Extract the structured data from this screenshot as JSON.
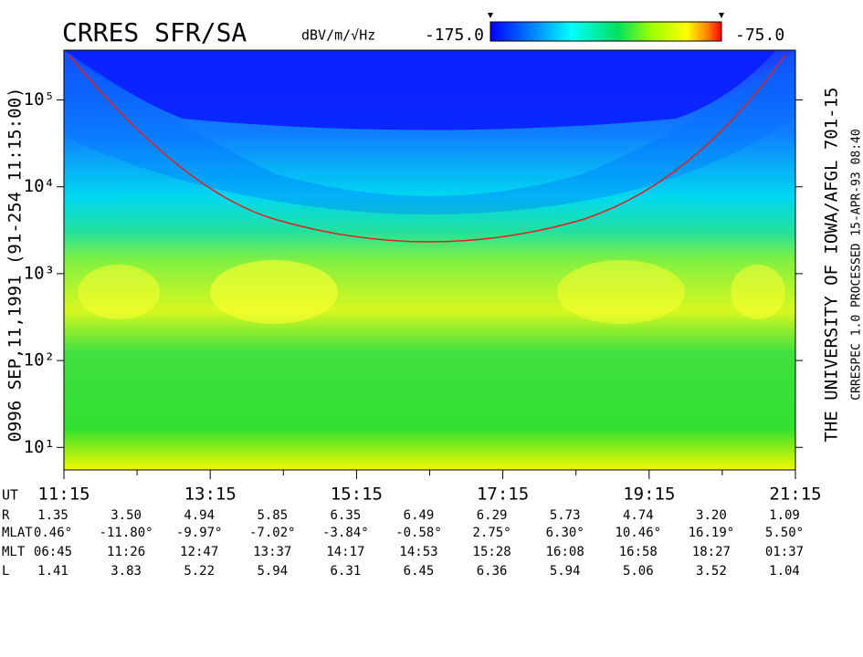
{
  "chart_data": {
    "type": "spectrogram",
    "title": "CRRES SFR/SA",
    "colorbar": {
      "label": "dBV/m/√Hz",
      "min": {
        "value": -175,
        "label": "-175.0"
      },
      "max": {
        "value": -75,
        "label": "-75.0"
      },
      "colors": [
        "#0000ff",
        "#0090ff",
        "#00ffff",
        "#00e060",
        "#a0ff00",
        "#ffff00",
        "#ff8000",
        "#ff0000"
      ]
    },
    "ylabel": "0996   SEP,11,1991   (91-254 11:15:00)",
    "right_texts": [
      "THE UNIVERSITY OF IOWA/AFGL 701-15",
      "CRRESPEC 1.0   PROCESSED 15-APR-93  08:40"
    ],
    "ylog": true,
    "ylim": [
      5.5,
      374000
    ],
    "yticks": [
      {
        "value": 10,
        "label": "10¹"
      },
      {
        "value": 100,
        "label": "10²"
      },
      {
        "value": 1000,
        "label": "10³"
      },
      {
        "value": 10000,
        "label": "10⁴"
      },
      {
        "value": 100000,
        "label": "10⁵"
      }
    ],
    "xlabel": "UT",
    "categories": [
      "11:15",
      null,
      "13:15",
      null,
      "15:15",
      null,
      "17:15",
      null,
      "19:15",
      null,
      "21:15"
    ],
    "ephemeris": [
      {
        "name": "R",
        "values": [
          "1.35",
          "3.50",
          "4.94",
          "5.85",
          "6.35",
          "6.49",
          "6.29",
          "5.73",
          "4.74",
          "3.20",
          "1.09"
        ]
      },
      {
        "name": "MLAT",
        "values": [
          "0.46°",
          "-11.80°",
          "-9.97°",
          "-7.02°",
          "-3.84°",
          "-0.58°",
          "2.75°",
          "6.30°",
          "10.46°",
          "16.19°",
          "5.50°"
        ]
      },
      {
        "name": "MLT",
        "values": [
          "06:45",
          "11:26",
          "12:47",
          "13:37",
          "14:17",
          "14:53",
          "15:28",
          "16:08",
          "16:58",
          "18:27",
          "01:37"
        ]
      },
      {
        "name": "L",
        "values": [
          "1.41",
          "3.83",
          "5.22",
          "5.94",
          "6.31",
          "6.45",
          "6.36",
          "5.94",
          "5.06",
          "3.52",
          "1.04"
        ]
      }
    ]
  }
}
